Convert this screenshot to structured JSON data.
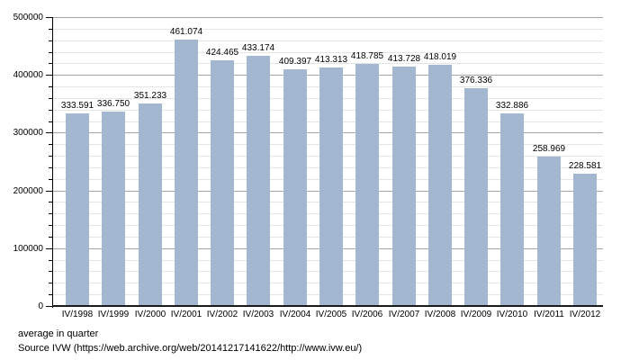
{
  "chart_data": {
    "type": "bar",
    "title": "",
    "xlabel": "",
    "ylabel": "",
    "categories": [
      "IV/1998",
      "IV/1999",
      "IV/2000",
      "IV/2001",
      "IV/2002",
      "IV/2003",
      "IV/2004",
      "IV/2005",
      "IV/2006",
      "IV/2007",
      "IV/2008",
      "IV/2009",
      "IV/2010",
      "IV/2011",
      "IV/2012"
    ],
    "values": [
      333591,
      336750,
      351233,
      461074,
      424465,
      433174,
      409397,
      413313,
      418785,
      413728,
      418019,
      376336,
      332886,
      258969,
      228581
    ],
    "value_labels": [
      "333.591",
      "336.750",
      "351.233",
      "461.074",
      "424.465",
      "433.174",
      "409.397",
      "413.313",
      "418.785",
      "413.728",
      "418.019",
      "376.336",
      "332.886",
      "258.969",
      "228.581"
    ],
    "ylim": [
      0,
      500000
    ],
    "ytick_step": 100000,
    "yminor_step": 20000,
    "ytick_labels": [
      "0",
      "100000",
      "200000",
      "300000",
      "400000",
      "500000"
    ],
    "grid": "on",
    "legend": "none",
    "note": "average in quarter",
    "source": "Source IVW (https://web.archive.org/web/20141217141622/http://www.ivw.eu/)",
    "colors": {
      "bar": "#A3B8D0",
      "grid_major": "#A6A6A6",
      "grid_minor": "#E5E5E5",
      "axis": "#000000",
      "text": "#000000"
    }
  }
}
